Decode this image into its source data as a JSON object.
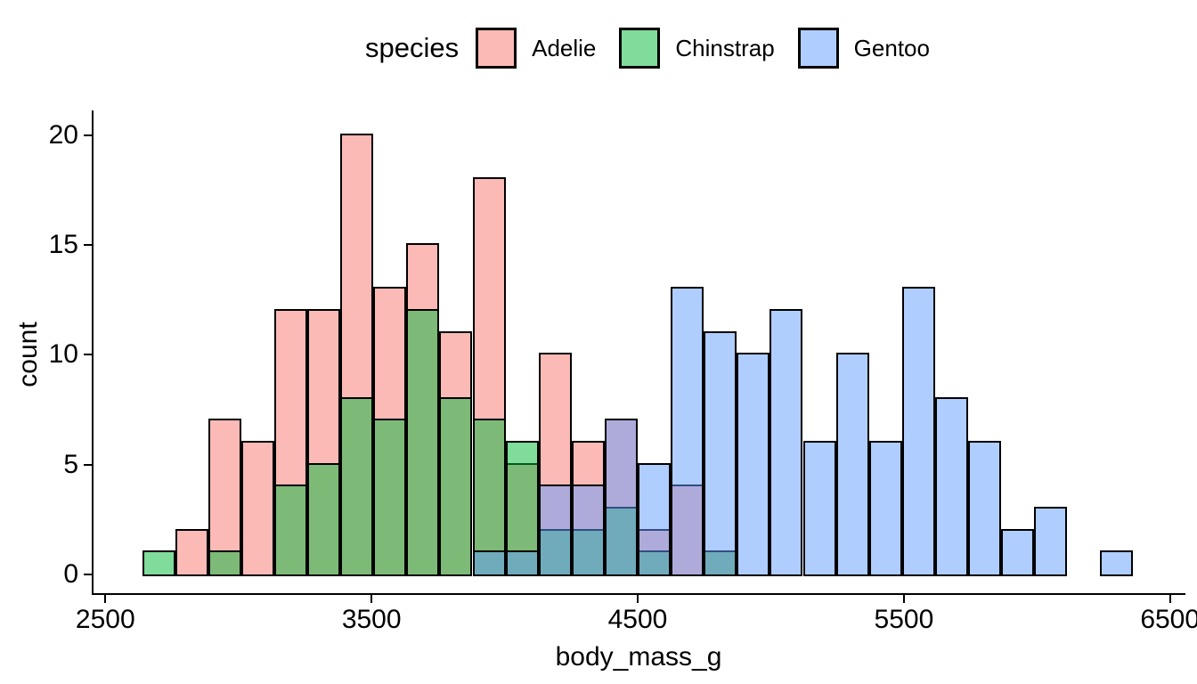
{
  "figure": {
    "background": "#FFFFFF"
  },
  "chart_data": {
    "type": "bar",
    "subtype": "overlaid-histogram",
    "title": "",
    "xlabel": "body_mass_g",
    "ylabel": "count",
    "legend_title": "species",
    "legend_position": "top",
    "grid": false,
    "bar_fill_alpha": 0.5,
    "bar_outline_color": "#000000",
    "binwidth": 124.14,
    "bin_centers": [
      2700,
      2824,
      2948,
      3072,
      3197,
      3321,
      3445,
      3569,
      3693,
      3817,
      3941,
      4066,
      4190,
      4314,
      4438,
      4562,
      4686,
      4810,
      4934,
      5059,
      5183,
      5307,
      5431,
      5555,
      5679,
      5803,
      5928,
      6052,
      6176,
      6300
    ],
    "series": [
      {
        "name": "Adelie",
        "color": "#F8766D",
        "values": [
          0,
          2,
          7,
          6,
          12,
          12,
          20,
          13,
          15,
          11,
          18,
          5,
          10,
          6,
          7,
          2,
          4,
          1,
          0,
          0,
          0,
          0,
          0,
          0,
          0,
          0,
          0,
          0,
          0,
          0
        ]
      },
      {
        "name": "Chinstrap",
        "color": "#00BA38",
        "values": [
          1,
          0,
          1,
          0,
          4,
          5,
          8,
          7,
          12,
          8,
          7,
          6,
          2,
          2,
          3,
          1,
          0,
          1,
          0,
          0,
          0,
          0,
          0,
          0,
          0,
          0,
          0,
          0,
          0,
          0
        ]
      },
      {
        "name": "Gentoo",
        "color": "#619CFF",
        "values": [
          0,
          0,
          0,
          0,
          0,
          0,
          0,
          0,
          0,
          0,
          1,
          1,
          4,
          4,
          7,
          5,
          13,
          11,
          10,
          12,
          6,
          10,
          6,
          13,
          8,
          6,
          2,
          3,
          0,
          1
        ]
      }
    ],
    "x_ticks": [
      2500,
      3500,
      4500,
      5500,
      6500
    ],
    "y_ticks": [
      0,
      5,
      10,
      15,
      20
    ],
    "xlim": [
      2450,
      6550
    ],
    "ylim": [
      0,
      21
    ]
  }
}
